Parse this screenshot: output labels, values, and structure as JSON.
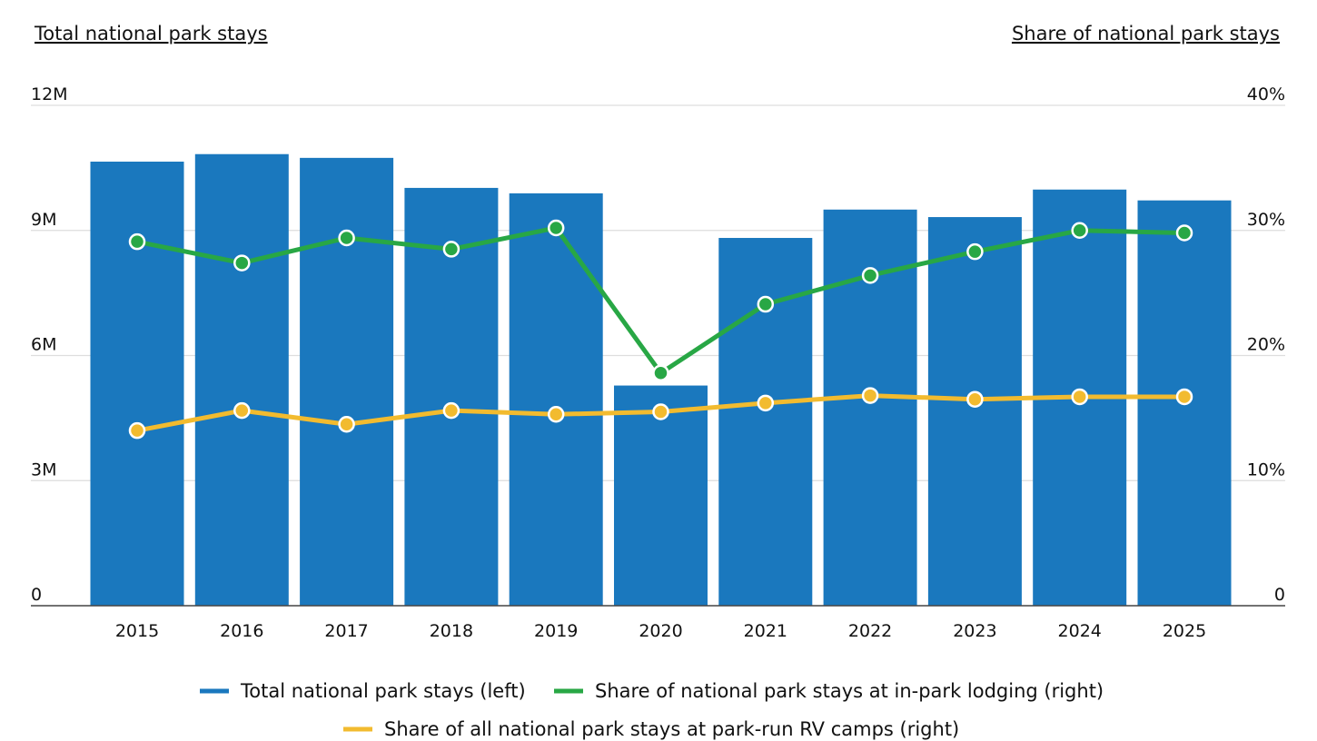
{
  "chart_data": {
    "type": "bar",
    "left_axis_title": "Total national park stays",
    "right_axis_title": "Share of national park stays",
    "categories": [
      "2015",
      "2016",
      "2017",
      "2018",
      "2019",
      "2020",
      "2021",
      "2022",
      "2023",
      "2024",
      "2025"
    ],
    "left_axis": {
      "min": 0,
      "max": 12000000,
      "ticks": [
        0,
        3000000,
        6000000,
        9000000,
        12000000
      ],
      "tick_labels": [
        "0",
        "3M",
        "6M",
        "9M",
        "12M"
      ]
    },
    "right_axis": {
      "min": 0,
      "max": 40,
      "ticks": [
        0,
        10,
        20,
        30,
        40
      ],
      "tick_labels": [
        "0",
        "10%",
        "20%",
        "30%",
        "40%"
      ]
    },
    "grid": true,
    "legend_position": "bottom",
    "series": [
      {
        "name": "Total national park stays (left)",
        "type": "bar",
        "axis": "left",
        "color": "#1a78be",
        "values": [
          10650000,
          10830000,
          10740000,
          10020000,
          9890000,
          5280000,
          8820000,
          9500000,
          9320000,
          9980000,
          9720000
        ]
      },
      {
        "name": "Share of national park stays at in-park lodging (right)",
        "type": "line",
        "axis": "right",
        "color": "#28a745",
        "values": [
          29.1,
          27.4,
          29.4,
          28.5,
          30.2,
          18.6,
          24.1,
          26.4,
          28.3,
          30.0,
          29.8
        ]
      },
      {
        "name": "Share of all national park stays at park-run RV camps (right)",
        "type": "line",
        "axis": "right",
        "color": "#f2bb2f",
        "values": [
          14.0,
          15.6,
          14.5,
          15.6,
          15.3,
          15.5,
          16.2,
          16.8,
          16.5,
          16.7,
          16.7
        ]
      }
    ]
  }
}
